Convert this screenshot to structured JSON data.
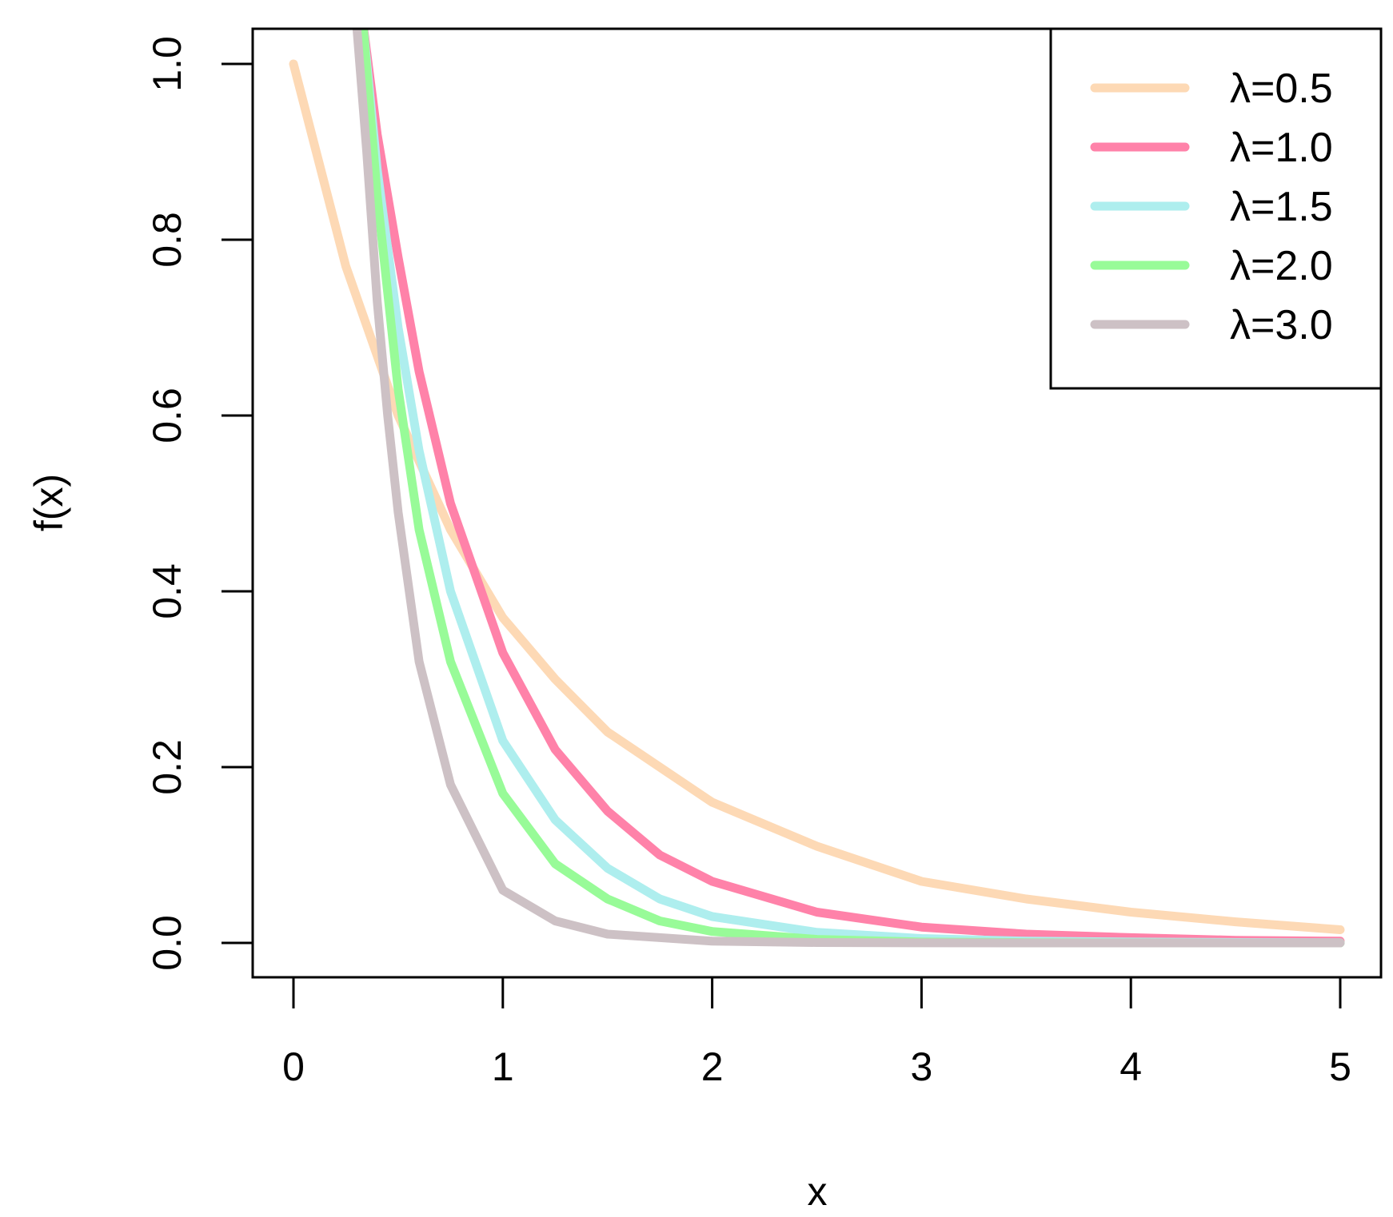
{
  "chart_data": {
    "type": "line",
    "title": "",
    "xlabel": "x",
    "ylabel": "f(x)",
    "xlim": [
      0,
      5
    ],
    "ylim": [
      0,
      1
    ],
    "x_ticks": [
      "0",
      "1",
      "2",
      "3",
      "4",
      "5"
    ],
    "y_ticks": [
      "0.0",
      "0.2",
      "0.4",
      "0.6",
      "0.8",
      "1.0"
    ],
    "grid": false,
    "legend_position": "top-right",
    "series": [
      {
        "name": "λ=0.5",
        "color": "#FDD9B5",
        "x": [
          0,
          0.25,
          0.5,
          0.75,
          1,
          1.25,
          1.5,
          1.75,
          2,
          2.5,
          3,
          3.5,
          4,
          4.5,
          5
        ],
        "y": [
          1.0,
          0.77,
          0.6,
          0.47,
          0.37,
          0.3,
          0.24,
          0.2,
          0.16,
          0.11,
          0.07,
          0.05,
          0.035,
          0.024,
          0.015
        ]
      },
      {
        "name": "λ=1.0",
        "color": "#FF82A9",
        "x": [
          0.33,
          0.4,
          0.5,
          0.6,
          0.75,
          1,
          1.25,
          1.5,
          1.75,
          2,
          2.5,
          3,
          3.5,
          4,
          4.5,
          5
        ],
        "y": [
          1.05,
          0.92,
          0.78,
          0.65,
          0.5,
          0.33,
          0.22,
          0.15,
          0.1,
          0.07,
          0.035,
          0.018,
          0.01,
          0.006,
          0.003,
          0.002
        ]
      },
      {
        "name": "λ=1.5",
        "color": "#AEEEEE",
        "x": [
          0.33,
          0.4,
          0.5,
          0.6,
          0.75,
          1,
          1.25,
          1.5,
          1.75,
          2,
          2.5,
          3,
          3.5,
          4,
          4.5,
          5
        ],
        "y": [
          1.05,
          0.88,
          0.7,
          0.56,
          0.4,
          0.23,
          0.14,
          0.085,
          0.05,
          0.03,
          0.012,
          0.005,
          0.002,
          0.001,
          0.0005,
          0.0002
        ]
      },
      {
        "name": "λ=2.0",
        "color": "#98FB98",
        "x": [
          0.33,
          0.4,
          0.5,
          0.6,
          0.75,
          1,
          1.25,
          1.5,
          1.75,
          2,
          2.5,
          3,
          3.5,
          4,
          4.5,
          5
        ],
        "y": [
          1.05,
          0.85,
          0.63,
          0.47,
          0.32,
          0.17,
          0.09,
          0.05,
          0.025,
          0.013,
          0.004,
          0.001,
          0.0004,
          0.0001,
          0,
          0
        ]
      },
      {
        "name": "λ=3.0",
        "color": "#CDC1C5",
        "x": [
          0.3,
          0.35,
          0.4,
          0.45,
          0.5,
          0.6,
          0.75,
          1,
          1.25,
          1.5,
          2,
          2.5,
          3,
          4,
          5
        ],
        "y": [
          1.05,
          0.9,
          0.73,
          0.6,
          0.49,
          0.32,
          0.18,
          0.06,
          0.025,
          0.01,
          0.002,
          0.0005,
          0.0001,
          0,
          0
        ]
      }
    ]
  }
}
